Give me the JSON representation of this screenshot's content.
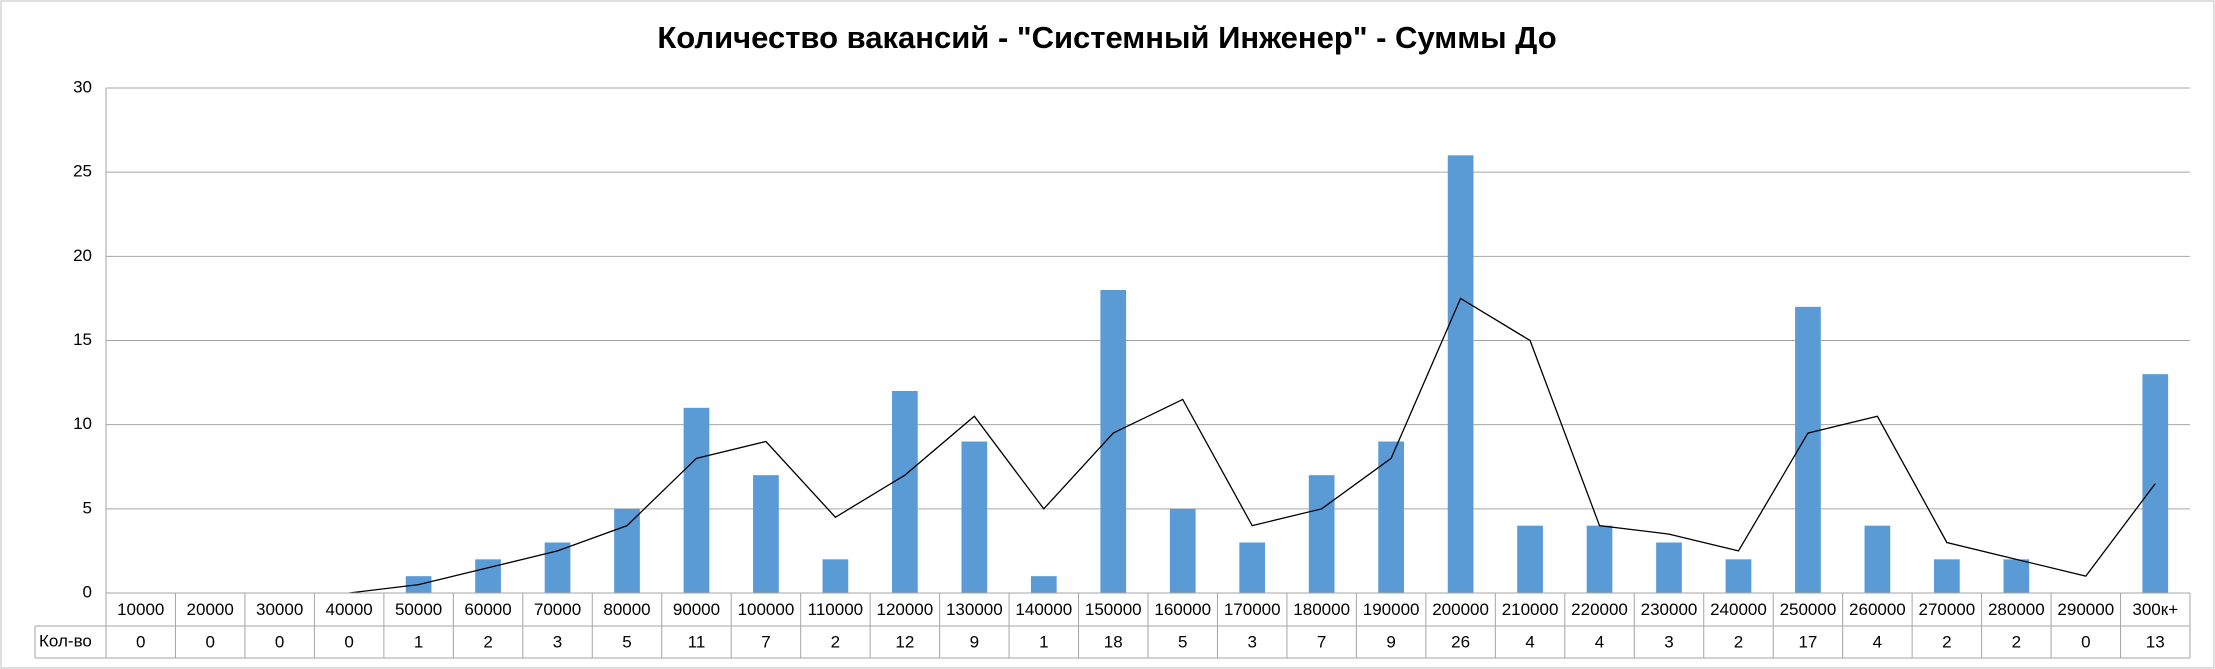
{
  "chart_data": {
    "type": "bar",
    "title": "Количество вакансий - \"Системный Инженер\" - Суммы До",
    "categories": [
      "10000",
      "20000",
      "30000",
      "40000",
      "50000",
      "60000",
      "70000",
      "80000",
      "90000",
      "100000",
      "110000",
      "120000",
      "130000",
      "140000",
      "150000",
      "160000",
      "170000",
      "180000",
      "190000",
      "200000",
      "210000",
      "220000",
      "230000",
      "240000",
      "250000",
      "260000",
      "270000",
      "280000",
      "290000",
      "300к+"
    ],
    "series": [
      {
        "name": "Кол-во",
        "color": "#5b9bd5",
        "values": [
          0,
          0,
          0,
          0,
          1,
          2,
          3,
          5,
          11,
          7,
          2,
          12,
          9,
          1,
          18,
          5,
          3,
          7,
          9,
          26,
          4,
          4,
          3,
          2,
          17,
          4,
          2,
          2,
          0,
          13
        ]
      },
      {
        "type": "line",
        "color": "#000000",
        "values": [
          null,
          null,
          null,
          0,
          0.5,
          1.5,
          2.5,
          4,
          8,
          9,
          4.5,
          7,
          10.5,
          5,
          9.5,
          11.5,
          4,
          5,
          8,
          17.5,
          15,
          4,
          3.5,
          2.5,
          9.5,
          10.5,
          3,
          2,
          1,
          6.5
        ]
      }
    ],
    "ylim": [
      0,
      30
    ],
    "yticks": [
      0,
      5,
      10,
      15,
      20,
      25,
      30
    ],
    "grid": true,
    "data_table": true
  }
}
